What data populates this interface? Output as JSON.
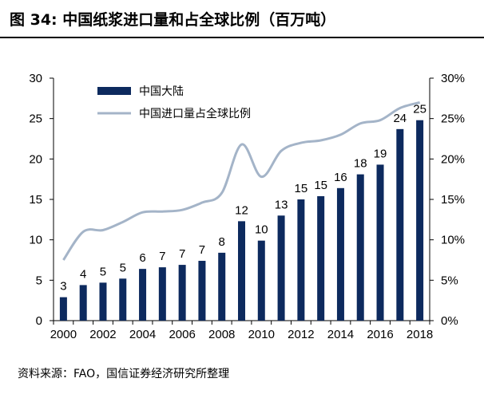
{
  "title": "图 34:  中国纸浆进口量和占全球比例（百万吨）",
  "source": "资料来源：FAO，国信证券经济研究所整理",
  "colors": {
    "bar": "#0d2a5e",
    "line": "#a4b4c8",
    "text": "#000000",
    "axis": "#000000"
  },
  "chart_data": {
    "type": "bar",
    "x": [
      2000,
      2001,
      2002,
      2003,
      2004,
      2005,
      2006,
      2007,
      2008,
      2009,
      2010,
      2011,
      2012,
      2013,
      2014,
      2015,
      2016,
      2017,
      2018
    ],
    "x_tick_labels": [
      "2000",
      "2002",
      "2004",
      "2006",
      "2008",
      "2010",
      "2012",
      "2014",
      "2016",
      "2018"
    ],
    "series": [
      {
        "name": "中国大陆",
        "type": "bar",
        "axis": "left",
        "values": [
          2.9,
          4.4,
          4.7,
          5.2,
          6.4,
          6.6,
          6.9,
          7.4,
          8.4,
          12.3,
          9.9,
          13.0,
          15.0,
          15.4,
          16.4,
          18.1,
          19.3,
          23.7,
          24.8
        ],
        "data_labels": [
          "3",
          "4",
          "5",
          "5",
          "6",
          "7",
          "7",
          "7",
          "8",
          "12",
          "10",
          "13",
          "15",
          "15",
          "16",
          "18",
          "19",
          "24",
          "25"
        ]
      },
      {
        "name": "中国进口量占全球比例",
        "type": "line",
        "axis": "right",
        "values": [
          7.5,
          11.0,
          11.2,
          12.2,
          13.4,
          13.5,
          13.7,
          14.6,
          15.8,
          21.8,
          17.8,
          21.0,
          22.0,
          22.3,
          23.0,
          24.4,
          24.8,
          26.3,
          27.0
        ]
      }
    ],
    "y_left": {
      "range": [
        0,
        30
      ],
      "ticks": [
        "0",
        "5",
        "10",
        "15",
        "20",
        "25",
        "30"
      ]
    },
    "y_right": {
      "range": [
        0,
        30
      ],
      "ticks": [
        "0%",
        "5%",
        "10%",
        "15%",
        "20%",
        "25%",
        "30%"
      ]
    },
    "grid": false,
    "legend_position": "top-left"
  }
}
